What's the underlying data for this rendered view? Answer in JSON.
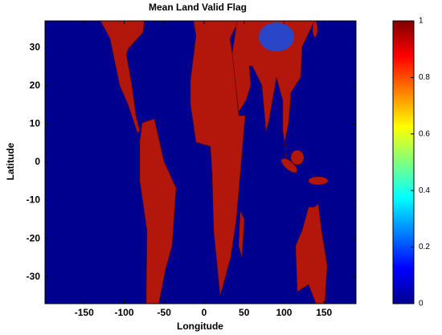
{
  "chart_data": {
    "type": "heatmap",
    "title": "Mean Land Valid Flag",
    "xlabel": "Longitude",
    "ylabel": "Latitude",
    "xlim": [
      -199,
      190
    ],
    "xticks": [
      -150,
      -100,
      -50,
      0,
      50,
      100,
      150
    ],
    "ylim": [
      -37,
      37
    ],
    "yticks": [
      -30,
      -20,
      -10,
      0,
      10,
      20,
      30
    ],
    "colormap": "jet",
    "clim": [
      0,
      1
    ],
    "cticks": [
      0,
      0.2,
      0.4,
      0.6,
      0.8,
      1
    ]
  }
}
